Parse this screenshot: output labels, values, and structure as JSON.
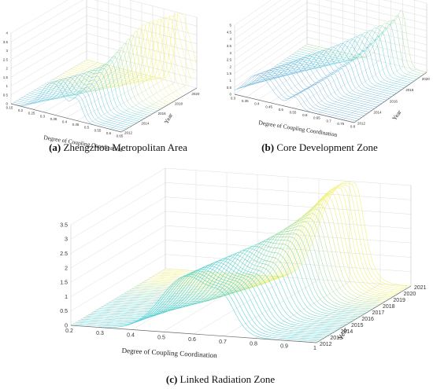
{
  "colors": {
    "low": "#6a4fc0",
    "mid": "#38c8d8",
    "high": "#f4ef5a",
    "axis": "#666666",
    "grid": "#dcdcdc"
  },
  "chart_data": [
    {
      "type": "surface3d",
      "panel_id": "a",
      "caption_letter": "(a)",
      "caption_text": " Zhengzhou Metropolitan Area",
      "xlabel": "Degree of Coupling Coordination",
      "ylabel": "Year",
      "x_ticks": [
        "0.15",
        "0.2",
        "0.25",
        "0.3",
        "0.35",
        "0.4",
        "0.45",
        "0.5",
        "0.55",
        "0.6",
        "0.65"
      ],
      "y_ticks": [
        "2012",
        "2014",
        "2016",
        "2018",
        "2020"
      ],
      "z_ticks": [
        "0",
        "0.5",
        "1",
        "1.5",
        "2",
        "2.5",
        "3",
        "3.5",
        "4"
      ],
      "xlim": [
        0.15,
        0.65
      ],
      "ylim": [
        2012,
        2021
      ],
      "zlim": [
        0,
        4
      ],
      "peaks": [
        {
          "x": [
            0.34,
            0.4,
            0.45,
            0.5,
            0.55,
            0.6
          ],
          "z": [
            1.8,
            1.9,
            2.1,
            2.3,
            2.6,
            3.0
          ]
        },
        {
          "x": [
            0.45,
            0.47,
            0.49,
            0.51,
            0.54,
            0.57
          ],
          "z": [
            1.9,
            2.1,
            2.4,
            2.8,
            3.3,
            3.9
          ]
        }
      ]
    },
    {
      "type": "surface3d",
      "panel_id": "b",
      "caption_letter": "(b)",
      "caption_text": " Core Development Zone",
      "xlabel": "Degree of Coupling Coordination",
      "ylabel": "Year",
      "x_ticks": [
        "0.3",
        "0.35",
        "0.4",
        "0.45",
        "0.5",
        "0.55",
        "0.6",
        "0.65",
        "0.7",
        "0.75",
        "0.8"
      ],
      "y_ticks": [
        "2012",
        "2014",
        "2016",
        "2018",
        "2020"
      ],
      "z_ticks": [
        "0",
        "0.5",
        "1",
        "1.5",
        "2",
        "2.5",
        "3",
        "3.5",
        "4",
        "4.5",
        "5"
      ],
      "xlim": [
        0.3,
        0.8
      ],
      "ylim": [
        2012,
        2021
      ],
      "zlim": [
        0,
        5
      ],
      "peaks": [
        {
          "x": [
            0.4,
            0.45,
            0.5,
            0.55,
            0.6,
            0.65
          ],
          "z": [
            1.8,
            1.9,
            2.1,
            2.3,
            2.7,
            3.1
          ]
        },
        {
          "x": [
            0.55,
            0.58,
            0.61,
            0.64,
            0.67,
            0.7
          ],
          "z": [
            1.5,
            2.0,
            2.6,
            3.3,
            4.1,
            4.8
          ]
        }
      ]
    },
    {
      "type": "surface3d",
      "panel_id": "c",
      "caption_letter": "(c)",
      "caption_text": " Linked Radiation Zone",
      "xlabel": "Degree of Coupling Coordination",
      "ylabel": "Year",
      "x_ticks": [
        "0.2",
        "0.3",
        "0.4",
        "0.5",
        "0.6",
        "0.7",
        "0.8",
        "0.9",
        "1"
      ],
      "y_ticks": [
        "2012",
        "2013",
        "2014",
        "2015",
        "2016",
        "2017",
        "2018",
        "2019",
        "2020",
        "2021"
      ],
      "z_ticks": [
        "0",
        "0.5",
        "1",
        "1.5",
        "2",
        "2.5",
        "3",
        "3.5"
      ],
      "xlim": [
        0.2,
        1.0
      ],
      "ylim": [
        2012,
        2021
      ],
      "zlim": [
        0,
        3.5
      ],
      "peaks": [
        {
          "x": [
            0.58,
            0.6,
            0.62,
            0.65,
            0.68,
            0.7,
            0.72,
            0.74,
            0.75,
            0.76
          ],
          "z": [
            2.0,
            2.05,
            2.1,
            2.2,
            2.3,
            2.4,
            2.55,
            2.75,
            2.95,
            3.1
          ]
        },
        {
          "x": [
            0.7,
            0.72,
            0.74,
            0.76,
            0.77,
            0.78,
            0.79,
            0.8,
            0.81,
            0.82
          ],
          "z": [
            1.3,
            1.4,
            1.5,
            1.65,
            1.8,
            2.0,
            2.2,
            2.45,
            2.75,
            3.0
          ]
        }
      ]
    }
  ]
}
